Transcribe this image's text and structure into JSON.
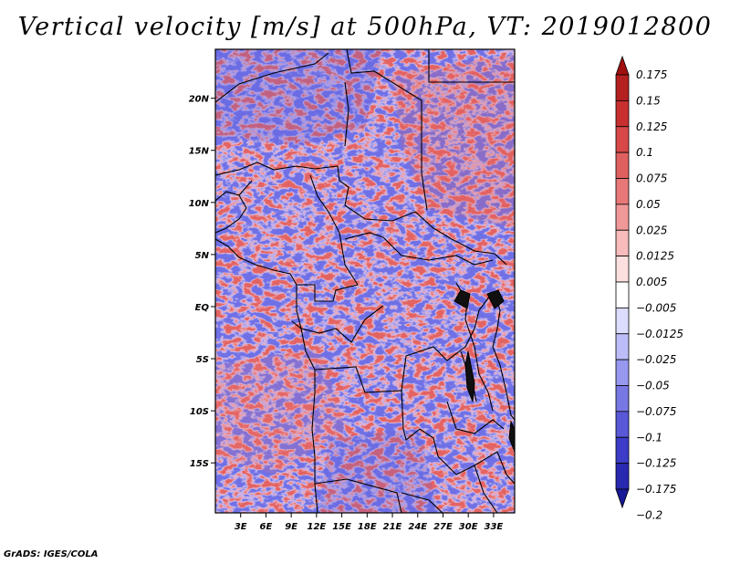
{
  "title": "Vertical velocity [m/s] at 500hPa, VT: 2019012800",
  "footer": "GrADS: IGES/COLA",
  "map": {
    "lon_range": [
      0,
      35.5
    ],
    "lat_range": [
      -19.8,
      24.7
    ],
    "lat_ticks": [
      {
        "value": 20,
        "label": "20N"
      },
      {
        "value": 15,
        "label": "15N"
      },
      {
        "value": 10,
        "label": "10N"
      },
      {
        "value": 5,
        "label": "5N"
      },
      {
        "value": 0,
        "label": "EQ"
      },
      {
        "value": -5,
        "label": "5S"
      },
      {
        "value": -10,
        "label": "10S"
      },
      {
        "value": -15,
        "label": "15S"
      }
    ],
    "lon_ticks": [
      {
        "value": 3,
        "label": "3E"
      },
      {
        "value": 6,
        "label": "6E"
      },
      {
        "value": 9,
        "label": "9E"
      },
      {
        "value": 12,
        "label": "12E"
      },
      {
        "value": 15,
        "label": "15E"
      },
      {
        "value": 18,
        "label": "18E"
      },
      {
        "value": 21,
        "label": "21E"
      },
      {
        "value": 24,
        "label": "24E"
      },
      {
        "value": 27,
        "label": "27E"
      },
      {
        "value": 30,
        "label": "30E"
      },
      {
        "value": 33,
        "label": "33E"
      }
    ]
  },
  "colorbar": {
    "labels": [
      "0.175",
      "0.15",
      "0.125",
      "0.1",
      "0.075",
      "0.05",
      "0.025",
      "0.0125",
      "0.005",
      "−0.005",
      "−0.0125",
      "−0.025",
      "−0.05",
      "−0.075",
      "−0.1",
      "−0.125",
      "−0.175",
      "−0.2"
    ],
    "colors": [
      "#a01010",
      "#b42020",
      "#c83030",
      "#d84848",
      "#e06060",
      "#e87878",
      "#f09898",
      "#f8bcbc",
      "#fce0e0",
      "#ffffff",
      "#dcdcff",
      "#bcbcf8",
      "#9898f0",
      "#7878e4",
      "#5858d8",
      "#3c3cc8",
      "#2828b0",
      "#181898"
    ]
  }
}
